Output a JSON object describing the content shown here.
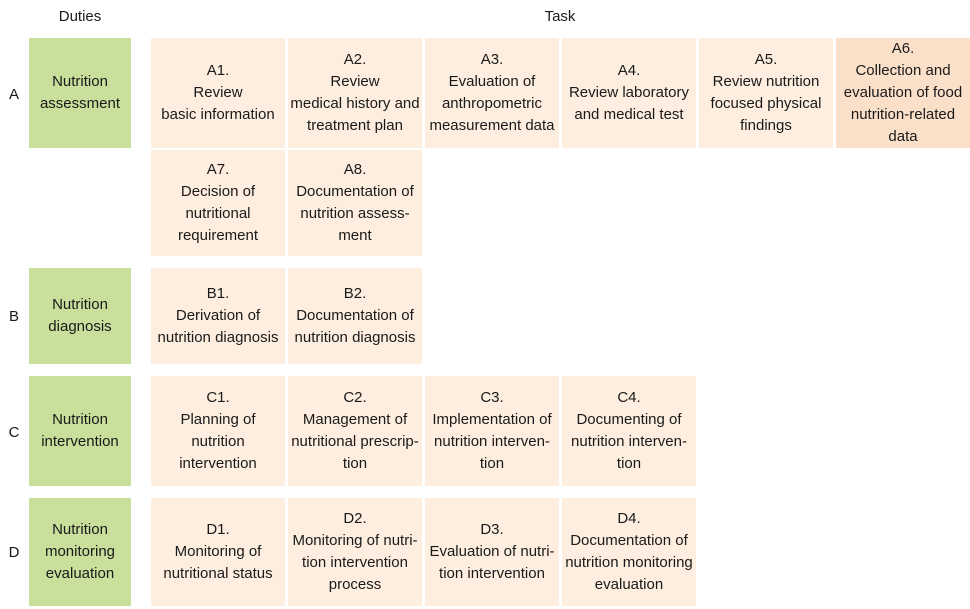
{
  "headers": {
    "duties": "Duties",
    "task": "Task"
  },
  "rows": [
    {
      "letter": "A",
      "duty": "Nutrition\nassessment",
      "tasks": [
        "A1.\nReview\nbasic information",
        "A2.\nReview\nmedical history and\ntreatment plan",
        "A3.\nEvaluation of\nanthropometric\nmeasurement data",
        "A4.\nReview laboratory\nand medical test",
        "A5.\nReview nutrition\nfocused physical\nfindings",
        "A6.\nCollection and\nevaluation of food\nnutrition-related data",
        "A7.\nDecision of\nnutritional\nrequirement",
        "A8.\nDocumentation of\nnutrition assess-\nment"
      ]
    },
    {
      "letter": "B",
      "duty": "Nutrition\ndiagnosis",
      "tasks": [
        "B1.\nDerivation of\nnutrition diagnosis",
        "B2.\nDocumentation of\nnutrition diagnosis"
      ]
    },
    {
      "letter": "C",
      "duty": "Nutrition\nintervention",
      "tasks": [
        "C1.\nPlanning of nutrition\nintervention",
        "C2.\nManagement of\nnutritional prescrip-\ntion",
        "C3.\nImplementation of\nnutrition interven-\ntion",
        "C4.\nDocumenting of\nnutrition interven-\ntion"
      ]
    },
    {
      "letter": "D",
      "duty": "Nutrition\nmonitoring\nevaluation",
      "tasks": [
        "D1.\nMonitoring of\nnutritional status",
        "D2.\nMonitoring of nutri-\ntion intervention\nprocess",
        "D3.\nEvaluation of nutri-\ntion intervention",
        "D4.\nDocumentation of\nnutrition monitoring\nevaluation"
      ]
    }
  ]
}
